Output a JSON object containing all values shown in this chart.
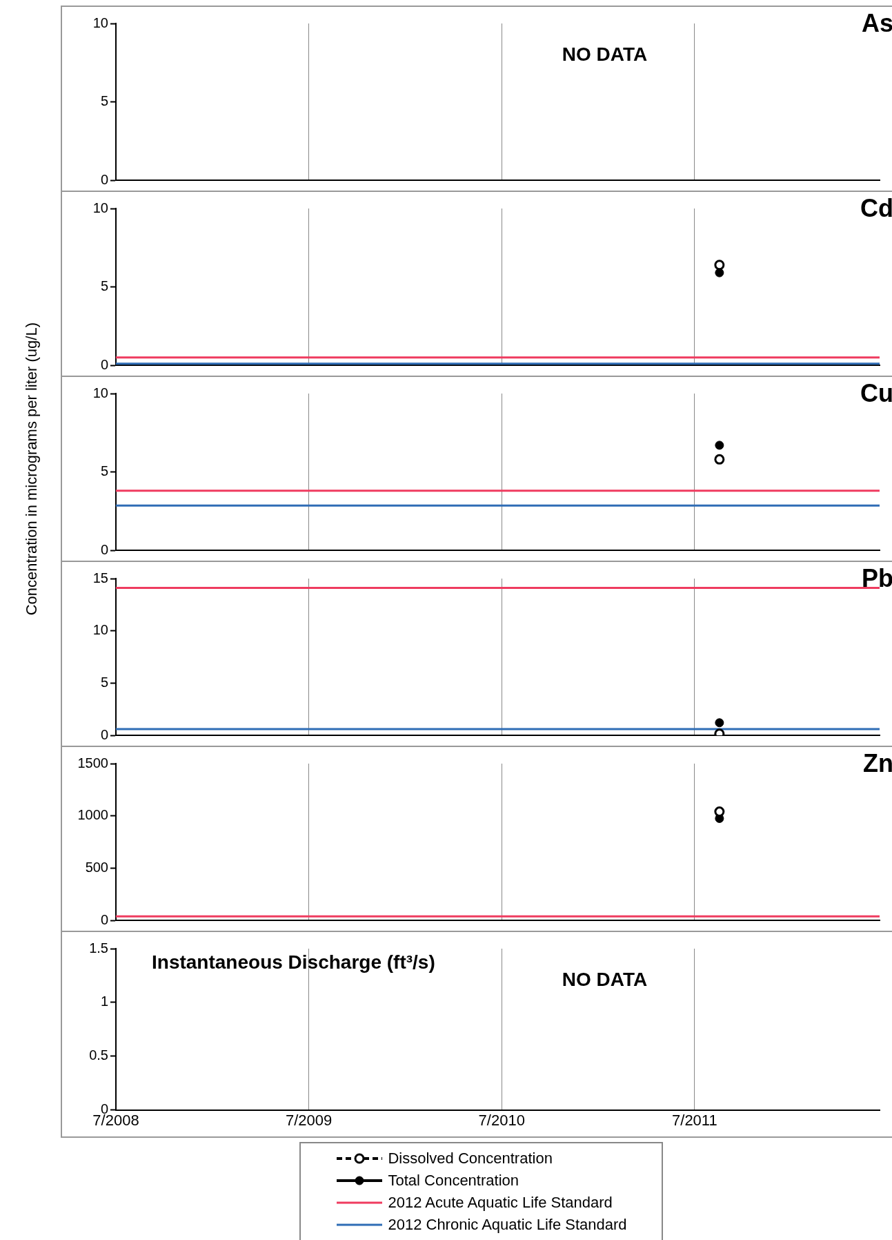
{
  "chart_data": [
    {
      "type": "scatter",
      "title": "As",
      "annotations": [
        "NO DATA"
      ],
      "xlim": [
        "2008-07-01",
        "2012-06-15"
      ],
      "xticks": [
        {
          "value": "2008-07",
          "label": null
        },
        {
          "value": "2009-07",
          "label": null
        },
        {
          "value": "2010-07",
          "label": null
        },
        {
          "value": "2011-07",
          "label": null
        }
      ],
      "ylim": [
        0,
        10
      ],
      "yticks": [
        0,
        5,
        10
      ],
      "grid": "x",
      "tick_labels": "y"
    },
    {
      "type": "scatter",
      "title": "Cd",
      "xlim": [
        "2008-07-01",
        "2012-06-15"
      ],
      "xticks": [
        {
          "value": "2008-07",
          "label": null
        },
        {
          "value": "2009-07",
          "label": null
        },
        {
          "value": "2010-07",
          "label": null
        },
        {
          "value": "2011-07",
          "label": null
        }
      ],
      "ylim": [
        0,
        10
      ],
      "yticks": [
        0,
        5,
        10
      ],
      "grid": "x",
      "tick_labels": "y",
      "marker": "circle",
      "series": [
        {
          "color": "#000000",
          "line_style": "dashed",
          "x": [
            "2011-08-17"
          ],
          "values": [
            6.4
          ]
        },
        {
          "color": "#000000",
          "line_style": "solid",
          "x": [
            "2011-08-17"
          ],
          "values": [
            5.9
          ]
        }
      ],
      "ref_lines": [
        {
          "axis": "y",
          "value": 0.5,
          "color": "#ef3b5f"
        },
        {
          "axis": "y",
          "value": 0.1,
          "color": "#2f6db5"
        }
      ]
    },
    {
      "type": "scatter",
      "title": "Cu",
      "ylabel": "Concentration in micrograms per liter (ug/L)",
      "xlim": [
        "2008-07-01",
        "2012-06-15"
      ],
      "xticks": [
        {
          "value": "2008-07",
          "label": null
        },
        {
          "value": "2009-07",
          "label": null
        },
        {
          "value": "2010-07",
          "label": null
        },
        {
          "value": "2011-07",
          "label": null
        }
      ],
      "ylim": [
        0,
        10
      ],
      "yticks": [
        0,
        5,
        10
      ],
      "grid": "x",
      "tick_labels": "y",
      "legend": "bottom",
      "marker": "circle",
      "series": [
        {
          "name": "Dissolved Concentration",
          "color": "#000000",
          "line_style": "dashed",
          "x": [
            "2011-08-17"
          ],
          "values": [
            5.8
          ]
        },
        {
          "name": "Total Concentration",
          "color": "#000000",
          "line_style": "solid",
          "x": [
            "2011-08-17"
          ],
          "values": [
            6.7
          ]
        }
      ],
      "ref_lines": [
        {
          "axis": "y",
          "value": 3.8,
          "label": "2012 Acute Aquatic Life Standard",
          "color": "#ef3b5f"
        },
        {
          "axis": "y",
          "value": 2.85,
          "label": "2012 Chronic Aquatic Life Standard",
          "color": "#2f6db5"
        }
      ]
    },
    {
      "type": "scatter",
      "title": "Pb",
      "xlim": [
        "2008-07-01",
        "2012-06-15"
      ],
      "xticks": [
        {
          "value": "2008-07",
          "label": null
        },
        {
          "value": "2009-07",
          "label": null
        },
        {
          "value": "2010-07",
          "label": null
        },
        {
          "value": "2011-07",
          "label": null
        }
      ],
      "ylim": [
        0,
        15
      ],
      "yticks": [
        0,
        5,
        10,
        15
      ],
      "grid": "x",
      "tick_labels": "y",
      "marker": "circle",
      "series": [
        {
          "color": "#000000",
          "line_style": "dashed",
          "x": [
            "2011-08-17"
          ],
          "values": [
            0.15
          ]
        },
        {
          "color": "#000000",
          "line_style": "solid",
          "x": [
            "2011-08-17"
          ],
          "values": [
            1.2
          ]
        }
      ],
      "ref_lines": [
        {
          "axis": "y",
          "value": 14.1,
          "color": "#ef3b5f"
        },
        {
          "axis": "y",
          "value": 0.6,
          "color": "#2f6db5"
        }
      ]
    },
    {
      "type": "scatter",
      "title": "Zn",
      "xlim": [
        "2008-07-01",
        "2012-06-15"
      ],
      "xticks": [
        {
          "value": "2008-07",
          "label": null
        },
        {
          "value": "2009-07",
          "label": null
        },
        {
          "value": "2010-07",
          "label": null
        },
        {
          "value": "2011-07",
          "label": null
        }
      ],
      "ylim": [
        0,
        1500
      ],
      "yticks": [
        0,
        500,
        1000,
        1500
      ],
      "grid": "x",
      "tick_labels": "y",
      "marker": "circle",
      "series": [
        {
          "color": "#000000",
          "line_style": "dashed",
          "x": [
            "2011-08-17"
          ],
          "values": [
            1040
          ]
        },
        {
          "color": "#000000",
          "line_style": "solid",
          "x": [
            "2011-08-17"
          ],
          "values": [
            975
          ]
        }
      ],
      "ref_lines": [
        {
          "axis": "y",
          "value": 38,
          "color": "#ef3b5f"
        }
      ]
    },
    {
      "type": "scatter",
      "ylabel": "Instantaneous Discharge (ft³/s)",
      "annotations": [
        "NO DATA"
      ],
      "xlim": [
        "2008-07-01",
        "2012-06-15"
      ],
      "xticks": [
        {
          "value": "2008-07",
          "label": "7/2008"
        },
        {
          "value": "2009-07",
          "label": "7/2009"
        },
        {
          "value": "2010-07",
          "label": "7/2010"
        },
        {
          "value": "2011-07",
          "label": "7/2011"
        }
      ],
      "ylim": [
        0,
        1.5
      ],
      "yticks": [
        0,
        0.5,
        1,
        1.5
      ],
      "grid": "x"
    }
  ]
}
